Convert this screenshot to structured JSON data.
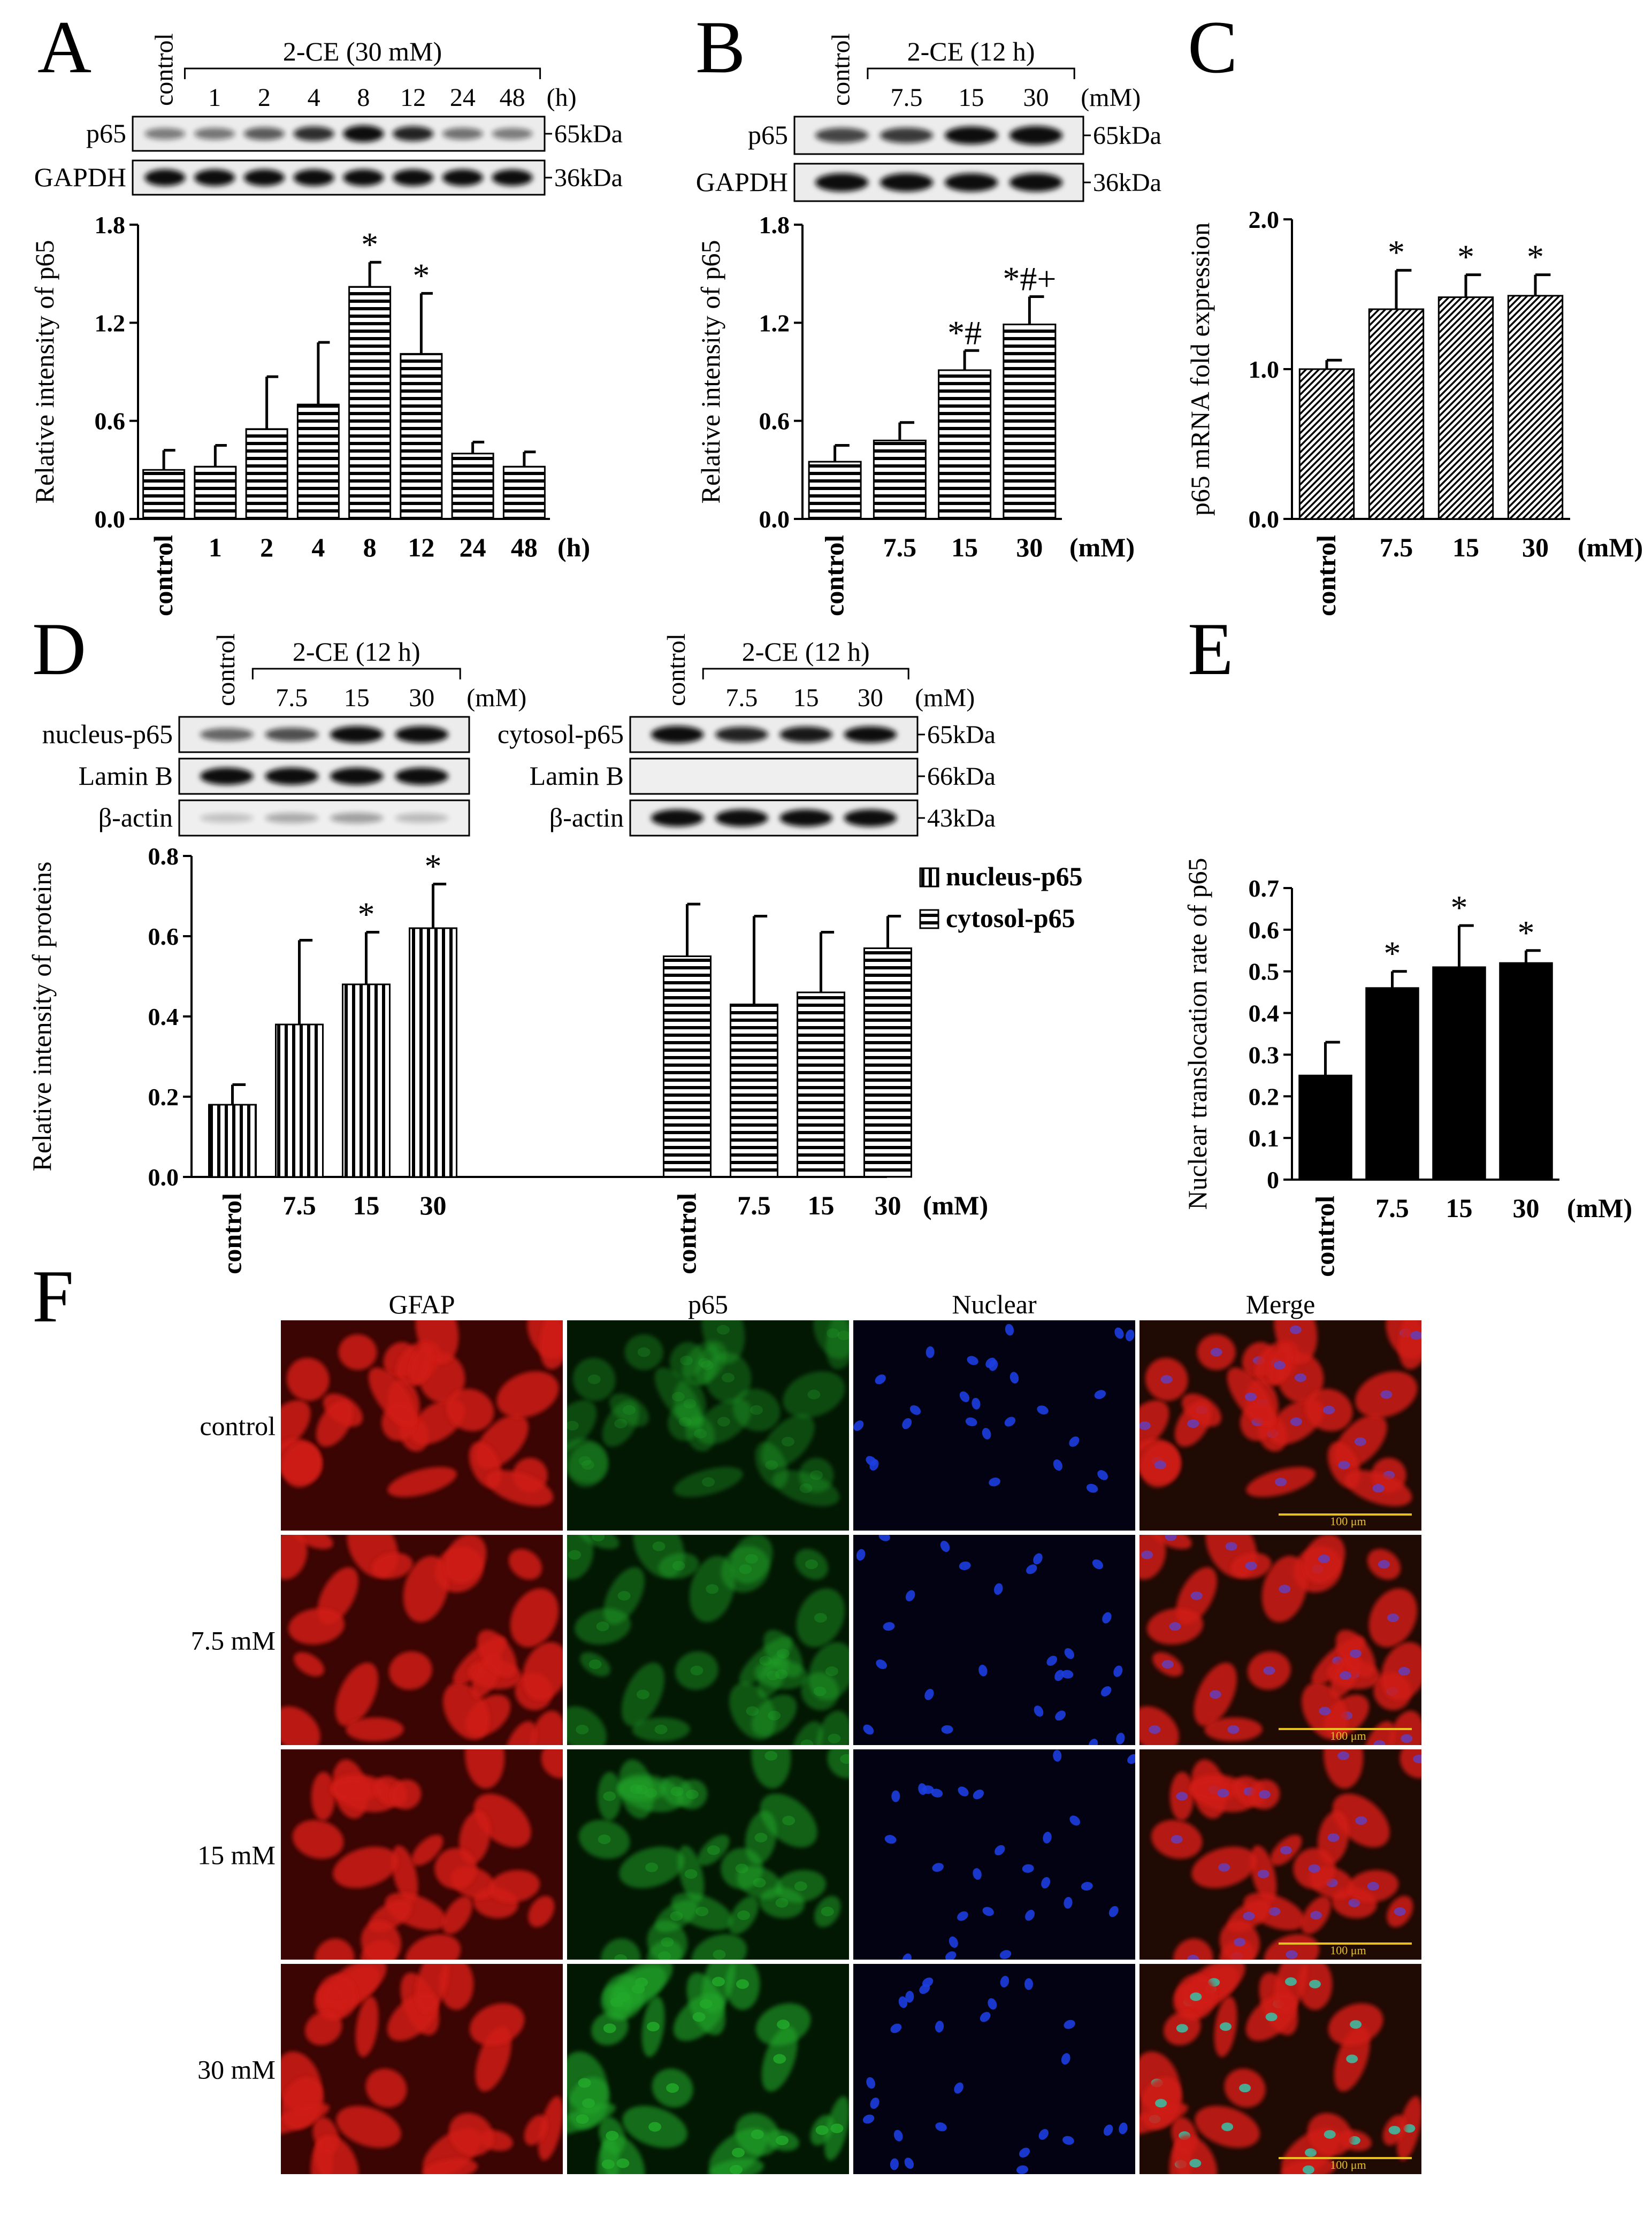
{
  "panel_labels": [
    "A",
    "B",
    "C",
    "D",
    "E",
    "F"
  ],
  "colors": {
    "band": "#1a1a1a",
    "blot_bg": "#e6e6e6",
    "red_stain": "#d01a12",
    "green_stain": "#22a82a",
    "blue_stain": "#1c3ee0",
    "bar_solid": "#000000",
    "scale_bar": "#e8c020"
  },
  "blots": {
    "A": {
      "treatment": "2-CE (30 mM)",
      "unit": "(h)",
      "lanes": [
        "control",
        "1",
        "2",
        "4",
        "8",
        "12",
        "24",
        "48"
      ],
      "rows": [
        {
          "name": "p65",
          "size": "65kDa"
        },
        {
          "name": "GAPDH",
          "size": "36kDa"
        }
      ]
    },
    "B": {
      "treatment": "2-CE (12 h)",
      "unit": "(mM)",
      "lanes": [
        "control",
        "7.5",
        "15",
        "30"
      ],
      "rows": [
        {
          "name": "p65",
          "size": "65kDa"
        },
        {
          "name": "GAPDH",
          "size": "36kDa"
        }
      ]
    },
    "D_nucleus": {
      "treatment": "2-CE (12 h)",
      "unit": "(mM)",
      "lanes": [
        "control",
        "7.5",
        "15",
        "30"
      ],
      "rows": [
        {
          "name": "nucleus-p65",
          "size": ""
        },
        {
          "name": "Lamin B",
          "size": ""
        },
        {
          "name": "β-actin",
          "size": ""
        }
      ]
    },
    "D_cytosol": {
      "treatment": "2-CE (12 h)",
      "unit": "(mM)",
      "lanes": [
        "control",
        "7.5",
        "15",
        "30"
      ],
      "rows": [
        {
          "name": "cytosol-p65",
          "size": "65kDa"
        },
        {
          "name": "Lamin B",
          "size": "66kDa"
        },
        {
          "name": "β-actin",
          "size": "43kDa"
        }
      ]
    }
  },
  "chart_data": [
    {
      "panel": "A",
      "type": "bar",
      "categories": [
        "control",
        "1",
        "2",
        "4",
        "8",
        "12",
        "24",
        "48"
      ],
      "x_unit": "(h)",
      "values": [
        0.3,
        0.32,
        0.55,
        0.7,
        1.42,
        1.01,
        0.4,
        0.32
      ],
      "errors": [
        0.12,
        0.13,
        0.32,
        0.38,
        0.15,
        0.37,
        0.07,
        0.09
      ],
      "significance": [
        "",
        "",
        "",
        "",
        "*",
        "*",
        "",
        ""
      ],
      "ylabel": "Relative intensity of p65",
      "yticks": [
        "0.0",
        "0.6",
        "1.2",
        "1.8"
      ],
      "ylim": [
        0,
        1.8
      ],
      "pattern": "horizontal-stripes"
    },
    {
      "panel": "B",
      "type": "bar",
      "categories": [
        "control",
        "7.5",
        "15",
        "30"
      ],
      "x_unit": "(mM)",
      "values": [
        0.35,
        0.48,
        0.91,
        1.19
      ],
      "errors": [
        0.1,
        0.11,
        0.12,
        0.17
      ],
      "significance": [
        "",
        "",
        "*#",
        "*#+"
      ],
      "ylabel": "Relative intensity of p65",
      "yticks": [
        "0.0",
        "0.6",
        "1.2",
        "1.8"
      ],
      "ylim": [
        0,
        1.8
      ],
      "pattern": "horizontal-stripes"
    },
    {
      "panel": "C",
      "type": "bar",
      "categories": [
        "control",
        "7.5",
        "15",
        "30"
      ],
      "x_unit": "(mM)",
      "values": [
        1.0,
        1.4,
        1.48,
        1.49
      ],
      "errors": [
        0.06,
        0.26,
        0.15,
        0.14
      ],
      "significance": [
        "",
        "*",
        "*",
        "*"
      ],
      "ylabel": "p65 mRNA fold expression",
      "yticks": [
        "0.0",
        "1.0",
        "2.0"
      ],
      "ylim": [
        0,
        2.0
      ],
      "pattern": "diagonal-hatch"
    },
    {
      "panel": "D",
      "type": "bar",
      "categories": [
        "control",
        "7.5",
        "15",
        "30"
      ],
      "x_unit": "(mM)",
      "series": [
        {
          "name": "nucleus-p65",
          "values": [
            0.18,
            0.38,
            0.48,
            0.62
          ],
          "errors": [
            0.05,
            0.21,
            0.13,
            0.11
          ],
          "significance": [
            "",
            "",
            "*",
            "*"
          ],
          "pattern": "vertical-stripes"
        },
        {
          "name": "cytosol-p65",
          "values": [
            0.55,
            0.43,
            0.46,
            0.57
          ],
          "errors": [
            0.13,
            0.22,
            0.15,
            0.08
          ],
          "significance": [
            "",
            "",
            "",
            ""
          ],
          "pattern": "horizontal-stripes"
        }
      ],
      "ylabel": "Relative intensity of proteins",
      "yticks": [
        "0.0",
        "0.2",
        "0.4",
        "0.6",
        "0.8"
      ],
      "ylim": [
        0,
        0.8
      ],
      "legend": "top-right"
    },
    {
      "panel": "E",
      "type": "bar",
      "categories": [
        "control",
        "7.5",
        "15",
        "30"
      ],
      "x_unit": "(mM)",
      "values": [
        0.25,
        0.46,
        0.51,
        0.52
      ],
      "errors": [
        0.08,
        0.04,
        0.1,
        0.03
      ],
      "significance": [
        "",
        "*",
        "*",
        "*"
      ],
      "ylabel": "Nuclear translocation rate of p65",
      "yticks": [
        "0",
        "0.1",
        "0.2",
        "0.3",
        "0.4",
        "0.5",
        "0.6",
        "0.7"
      ],
      "ylim": [
        0,
        0.7
      ],
      "pattern": "solid"
    }
  ],
  "micrographs": {
    "columns": [
      "GFAP",
      "p65",
      "Nuclear",
      "Merge"
    ],
    "rows": [
      "control",
      "7.5 mM",
      "15 mM",
      "30 mM"
    ],
    "scale_bar": "100 μm"
  }
}
